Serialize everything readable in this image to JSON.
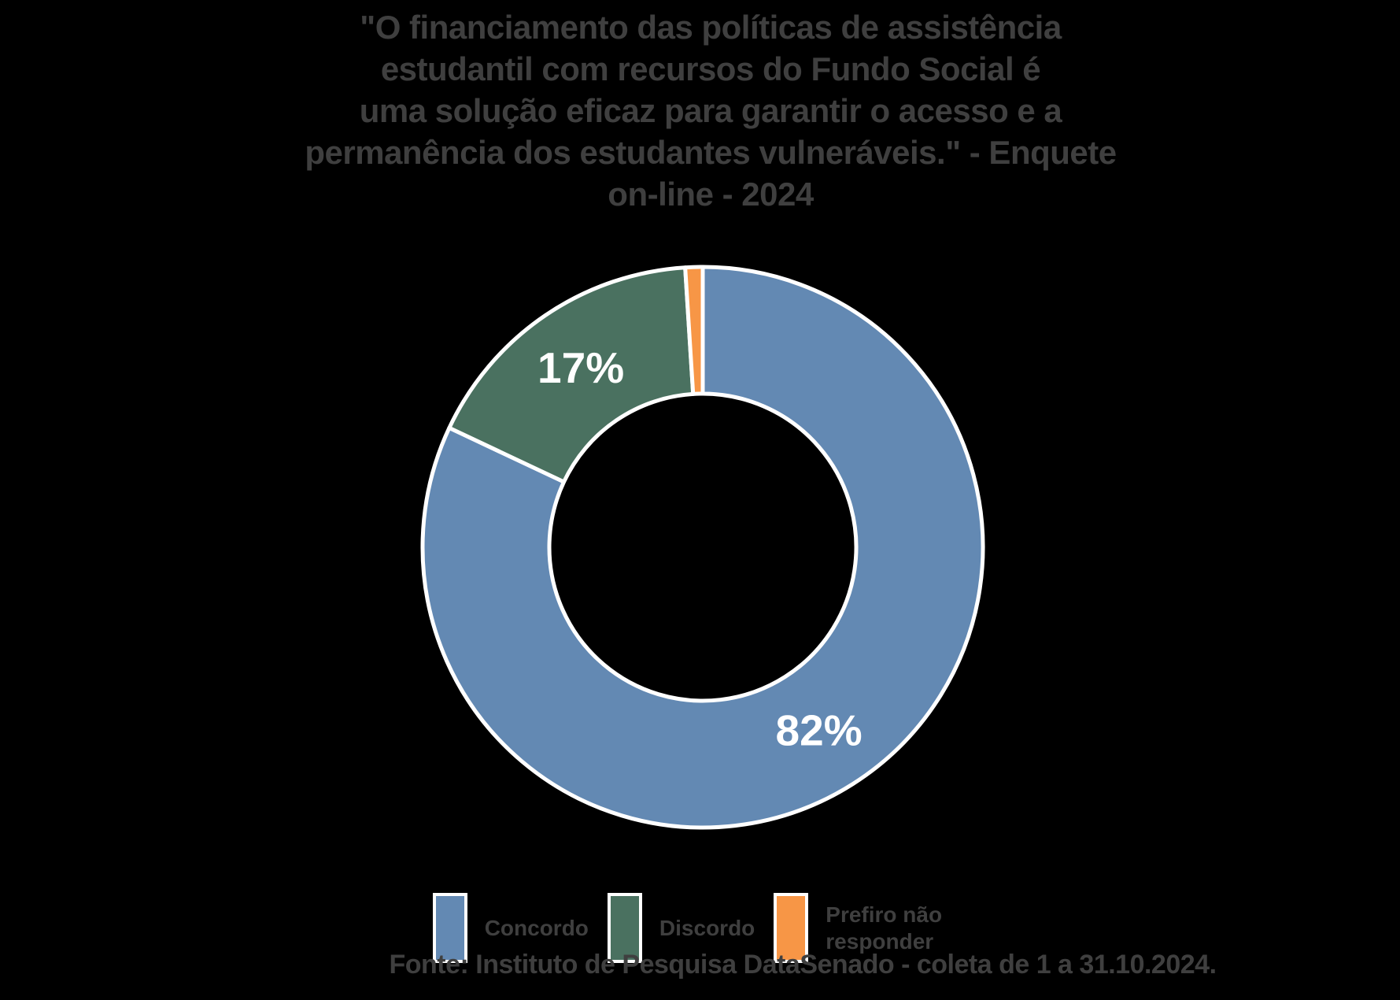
{
  "title": {
    "lines": [
      "\"O financiamento das políticas de assistência",
      "estudantil com recursos do Fundo Social é",
      "uma solução eficaz para garantir o acesso e a",
      "permanência dos estudantes vulneráveis.\" - Enquete",
      "on-line - 2024"
    ]
  },
  "chart_data": {
    "type": "pie",
    "subtype": "donut",
    "title": "\"O financiamento das políticas de assistência estudantil com recursos do Fundo Social é uma solução eficaz para garantir o acesso e a permanência dos estudantes vulneráveis.\" - Enquete on-line - 2024",
    "categories": [
      "Concordo",
      "Discordo",
      "Prefiro não responder"
    ],
    "values": [
      82,
      17,
      1
    ],
    "series": [
      {
        "name": "Concordo",
        "value": 82,
        "percent_label": "82%",
        "color": "#6389B3",
        "show_label": true
      },
      {
        "name": "Discordo",
        "value": 17,
        "percent_label": "17%",
        "color": "#4A7160",
        "show_label": true
      },
      {
        "name": "Prefiro não responder",
        "value": 1,
        "percent_label": "1%",
        "color": "#F79646",
        "show_label": false
      }
    ],
    "start_angle_deg": 0,
    "direction": "clockwise",
    "hole_ratio": 0.55,
    "slice_border_color": "#FFFFFF",
    "label_color": "#FFFFFF",
    "legend_position": "bottom"
  },
  "footer": {
    "source_text": "Fonte: Instituto de Pesquisa DataSenado - coleta de 1 a 31.10.2024."
  },
  "colors": {
    "background": "#000000",
    "text": "#3F3F3F",
    "concordo": "#6389B3",
    "discordo": "#4A7160",
    "prefiro_nao_responder": "#F79646"
  }
}
